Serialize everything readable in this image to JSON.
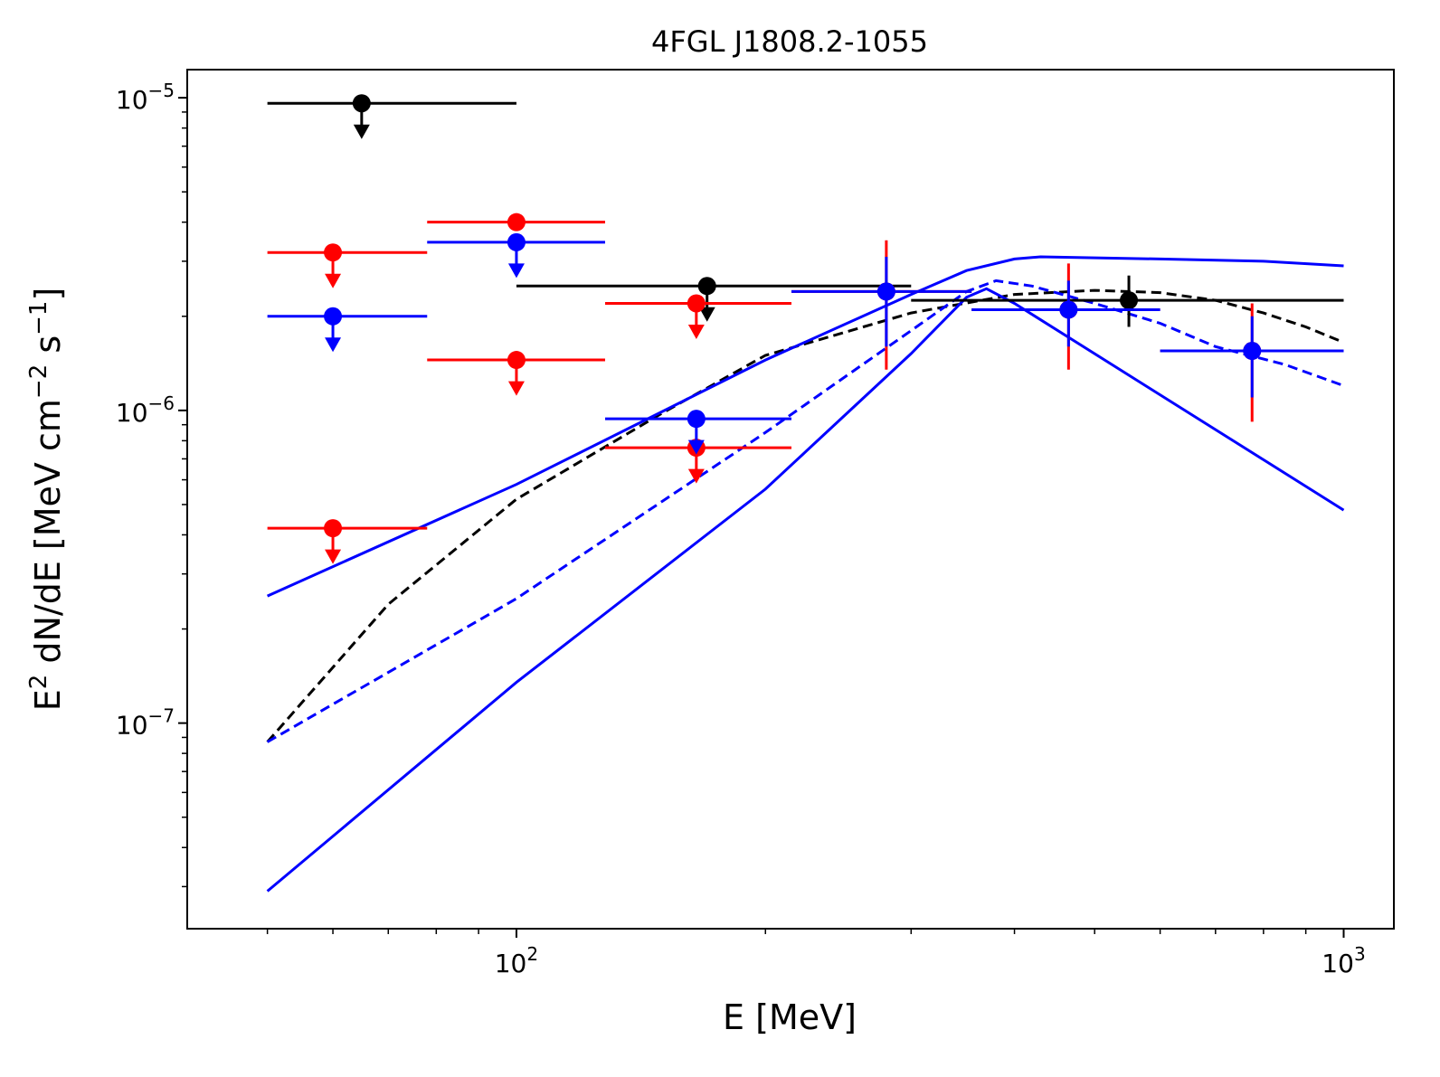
{
  "chart_data": {
    "type": "scatter",
    "title": "4FGL J1808.2-1055",
    "xlabel": "E [MeV]",
    "ylabel": {
      "base": "E",
      "base_sup": "2",
      "mid": " dN/dE [MeV cm",
      "mid_sup": "−2",
      "tail": " s",
      "tail_sup": "−1",
      "end": "]"
    },
    "xscale": "log",
    "yscale": "log",
    "xlim": [
      40,
      1150
    ],
    "ylim": [
      2.2e-08,
      1.23e-05
    ],
    "x_ticks": [
      {
        "value": 100,
        "base": "10",
        "exp": "2"
      },
      {
        "value": 1000,
        "base": "10",
        "exp": "3"
      }
    ],
    "y_ticks": [
      {
        "value": 1e-07,
        "base": "10",
        "exp": "−7"
      },
      {
        "value": 1e-06,
        "base": "10",
        "exp": "−6"
      },
      {
        "value": 1e-05,
        "base": "10",
        "exp": "−5"
      }
    ],
    "curves": [
      {
        "name": "black-dashed-model",
        "color": "#000000",
        "dash": true,
        "points": [
          [
            50,
            8.7e-08
          ],
          [
            70,
            2.4e-07
          ],
          [
            100,
            5.2e-07
          ],
          [
            150,
            9.8e-07
          ],
          [
            200,
            1.5e-06
          ],
          [
            300,
            2.05e-06
          ],
          [
            400,
            2.35e-06
          ],
          [
            500,
            2.42e-06
          ],
          [
            600,
            2.38e-06
          ],
          [
            700,
            2.25e-06
          ],
          [
            800,
            2.05e-06
          ],
          [
            900,
            1.85e-06
          ],
          [
            1000,
            1.65e-06
          ]
        ]
      },
      {
        "name": "blue-dashed-model",
        "color": "#0000ff",
        "dash": true,
        "points": [
          [
            50,
            8.7e-08
          ],
          [
            100,
            2.5e-07
          ],
          [
            200,
            8.5e-07
          ],
          [
            300,
            1.8e-06
          ],
          [
            350,
            2.4e-06
          ],
          [
            380,
            2.6e-06
          ],
          [
            420,
            2.5e-06
          ],
          [
            500,
            2.2e-06
          ],
          [
            600,
            1.9e-06
          ],
          [
            700,
            1.6e-06
          ],
          [
            850,
            1.4e-06
          ],
          [
            1000,
            1.2e-06
          ]
        ]
      },
      {
        "name": "blue-solid-upper",
        "color": "#0000ff",
        "dash": false,
        "points": [
          [
            50,
            2.55e-07
          ],
          [
            100,
            5.8e-07
          ],
          [
            200,
            1.45e-06
          ],
          [
            300,
            2.35e-06
          ],
          [
            350,
            2.8e-06
          ],
          [
            400,
            3.05e-06
          ],
          [
            430,
            3.1e-06
          ],
          [
            600,
            3.05e-06
          ],
          [
            800,
            3e-06
          ],
          [
            1000,
            2.9e-06
          ]
        ]
      },
      {
        "name": "blue-solid-lower",
        "color": "#0000ff",
        "dash": false,
        "points": [
          [
            50,
            2.9e-08
          ],
          [
            100,
            1.35e-07
          ],
          [
            200,
            5.6e-07
          ],
          [
            300,
            1.52e-06
          ],
          [
            350,
            2.3e-06
          ],
          [
            370,
            2.45e-06
          ],
          [
            400,
            2.2e-06
          ],
          [
            1000,
            4.8e-07
          ]
        ]
      }
    ],
    "series": [
      {
        "name": "black-points",
        "color": "#000000",
        "points": [
          {
            "x": 65,
            "y": 9.6e-06,
            "xlo": 50,
            "xhi": 100,
            "ul": true
          },
          {
            "x": 170,
            "y": 2.5e-06,
            "xlo": 100,
            "xhi": 300,
            "ul": true
          },
          {
            "x": 550,
            "y": 2.25e-06,
            "xlo": 300,
            "xhi": 1000,
            "ylo": 1.85e-06,
            "yhi": 2.7e-06
          }
        ]
      },
      {
        "name": "red-points",
        "color": "#ff0000",
        "points": [
          {
            "x": 60,
            "y": 3.2e-06,
            "xlo": 50,
            "xhi": 78,
            "ul": true
          },
          {
            "x": 60,
            "y": 4.2e-07,
            "xlo": 50,
            "xhi": 78,
            "ul": true
          },
          {
            "x": 100,
            "y": 4e-06,
            "xlo": 78,
            "xhi": 128,
            "ul": false
          },
          {
            "x": 100,
            "y": 1.45e-06,
            "xlo": 78,
            "xhi": 128,
            "ul": true
          },
          {
            "x": 165,
            "y": 2.2e-06,
            "xlo": 128,
            "xhi": 215,
            "ul": true
          },
          {
            "x": 165,
            "y": 7.6e-07,
            "xlo": 128,
            "xhi": 215,
            "ul": true
          },
          {
            "x": 280,
            "y": 2.4e-06,
            "xlo": 215,
            "xhi": 355,
            "ylo": 1.35e-06,
            "yhi": 3.5e-06
          },
          {
            "x": 465,
            "y": 2.1e-06,
            "xlo": 355,
            "xhi": 600,
            "ylo": 1.35e-06,
            "yhi": 2.95e-06
          },
          {
            "x": 775,
            "y": 1.55e-06,
            "xlo": 600,
            "xhi": 1000,
            "ylo": 9.2e-07,
            "yhi": 2.2e-06
          }
        ]
      },
      {
        "name": "blue-points",
        "color": "#0000ff",
        "points": [
          {
            "x": 60,
            "y": 2e-06,
            "xlo": 50,
            "xhi": 78,
            "ul": true
          },
          {
            "x": 100,
            "y": 3.45e-06,
            "xlo": 78,
            "xhi": 128,
            "ul": true
          },
          {
            "x": 165,
            "y": 9.4e-07,
            "xlo": 128,
            "xhi": 215,
            "ul": true
          },
          {
            "x": 280,
            "y": 2.4e-06,
            "xlo": 215,
            "xhi": 355,
            "ylo": 1.6e-06,
            "yhi": 3.1e-06
          },
          {
            "x": 465,
            "y": 2.1e-06,
            "xlo": 355,
            "xhi": 600,
            "ylo": 1.6e-06,
            "yhi": 2.6e-06
          },
          {
            "x": 775,
            "y": 1.55e-06,
            "xlo": 600,
            "xhi": 1000,
            "ylo": 1.1e-06,
            "yhi": 2e-06
          }
        ]
      }
    ]
  }
}
